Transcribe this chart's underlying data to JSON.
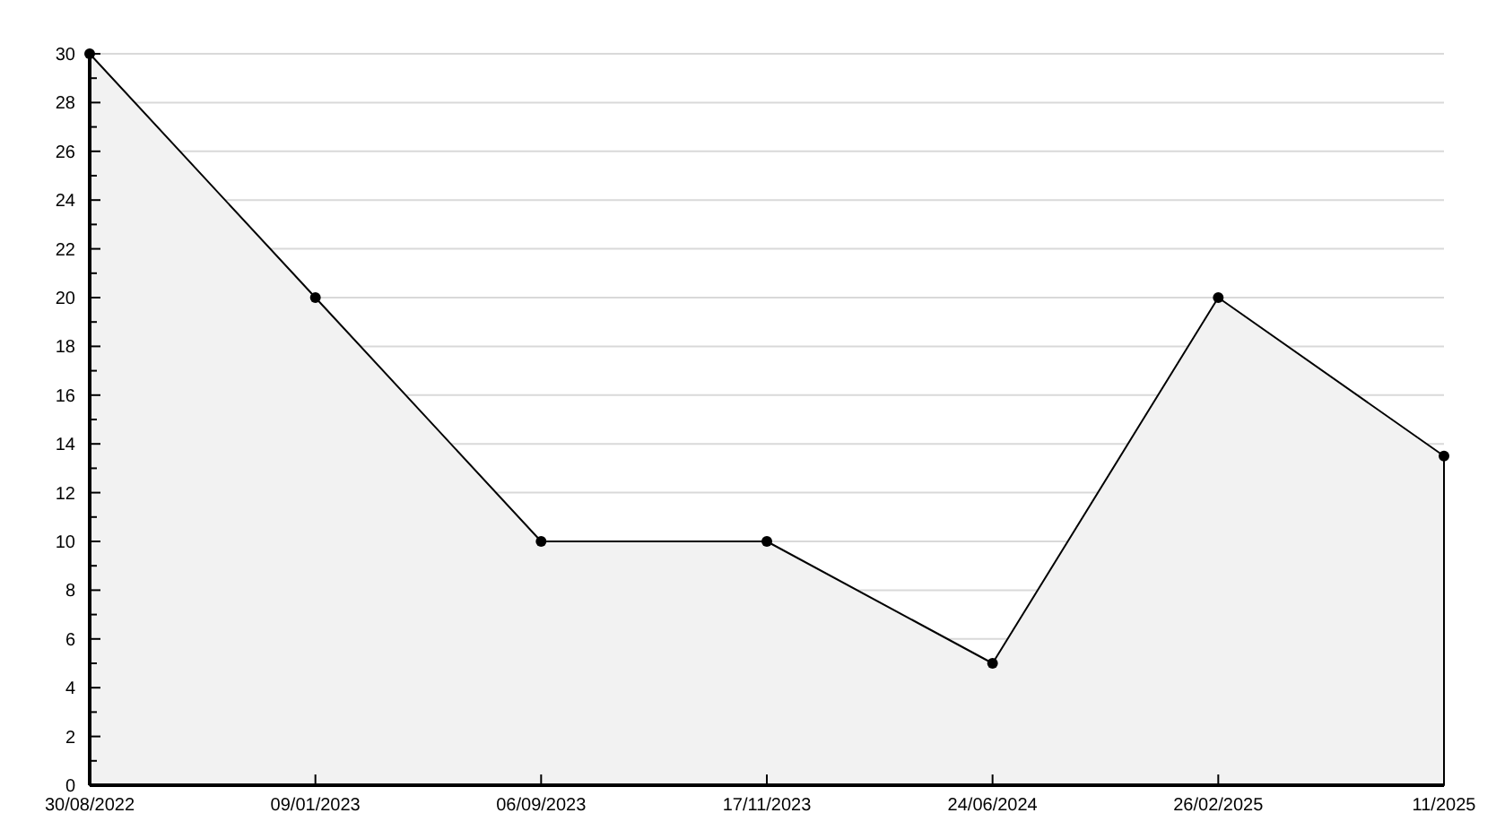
{
  "chart_data": {
    "type": "area",
    "categories": [
      "30/08/2022",
      "09/01/2023",
      "06/09/2023",
      "17/11/2023",
      "24/06/2024",
      "26/02/2025",
      "11/2025"
    ],
    "series": [
      {
        "color": "#f2f2f2",
        "values": [
          30,
          20,
          10,
          10,
          5,
          20,
          13.5
        ]
      }
    ],
    "ylim": [
      0,
      30
    ],
    "yticks": [
      0,
      {
        "value": 1,
        "label": null
      },
      2,
      {
        "value": 3,
        "label": null
      },
      4,
      {
        "value": 5,
        "label": null
      },
      6,
      {
        "value": 7,
        "label": null
      },
      8,
      {
        "value": 9,
        "label": null
      },
      10,
      {
        "value": 11,
        "label": null
      },
      12,
      {
        "value": 13,
        "label": null
      },
      14,
      {
        "value": 15,
        "label": null
      },
      16,
      {
        "value": 17,
        "label": null
      },
      18,
      {
        "value": 19,
        "label": null
      },
      20,
      {
        "value": 21,
        "label": null
      },
      22,
      {
        "value": 23,
        "label": null
      },
      24,
      {
        "value": 25,
        "label": null
      },
      26,
      {
        "value": 27,
        "label": null
      },
      28,
      {
        "value": 29,
        "label": null
      },
      30
    ],
    "grid": "y",
    "marker": "circle",
    "line_style": "solid"
  }
}
